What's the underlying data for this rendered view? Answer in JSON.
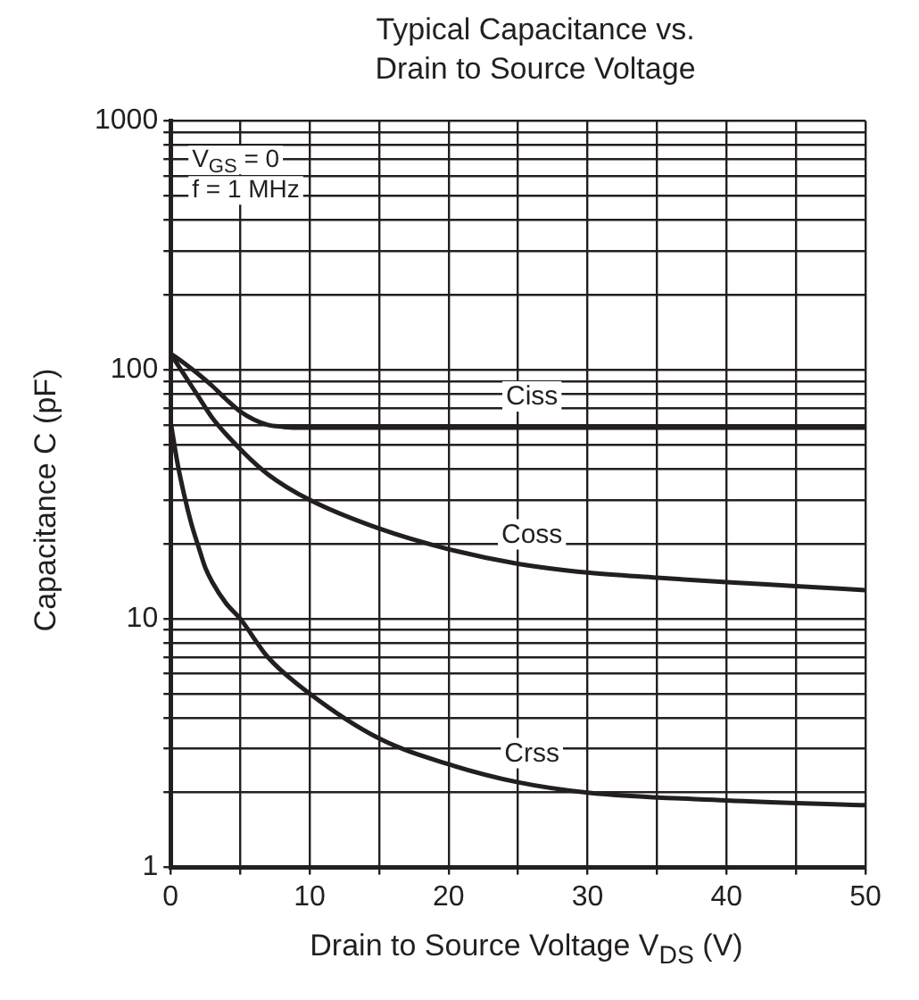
{
  "chart_data": {
    "type": "line",
    "title": "Typical Capacitance vs.\nDrain to Source Voltage",
    "xlabel": "Drain to Source Voltage  V$_{DS}$  (V)",
    "ylabel": "Capacitance  C (pF)",
    "annotations": [
      "V$_{GS}$ = 0",
      "f = 1 MHz"
    ],
    "log": "y",
    "grid": true,
    "legend": false,
    "marker": "none",
    "line_style": "solid",
    "xlim": [
      0,
      50
    ],
    "xticks": [
      0,
      {
        "value": 5,
        "label": null
      },
      10,
      {
        "value": 15,
        "label": null
      },
      20,
      {
        "value": 25,
        "label": null
      },
      30,
      {
        "value": 35,
        "label": null
      },
      40,
      {
        "value": 45,
        "label": null
      },
      50
    ],
    "ylim": [
      1,
      1000
    ],
    "yticks": [
      1,
      {
        "value": 2,
        "label": null
      },
      {
        "value": 3,
        "label": null
      },
      {
        "value": 4,
        "label": null
      },
      {
        "value": 5,
        "label": null
      },
      {
        "value": 6,
        "label": null
      },
      {
        "value": 7,
        "label": null
      },
      {
        "value": 8,
        "label": null
      },
      {
        "value": 9,
        "label": null
      },
      10,
      {
        "value": 20,
        "label": null
      },
      {
        "value": 30,
        "label": null
      },
      {
        "value": 40,
        "label": null
      },
      {
        "value": 50,
        "label": null
      },
      {
        "value": 60,
        "label": null
      },
      {
        "value": 70,
        "label": null
      },
      {
        "value": 80,
        "label": null
      },
      {
        "value": 90,
        "label": null
      },
      100,
      {
        "value": 200,
        "label": null
      },
      {
        "value": 300,
        "label": null
      },
      {
        "value": 400,
        "label": null
      },
      {
        "value": 500,
        "label": null
      },
      {
        "value": 600,
        "label": null
      },
      {
        "value": 700,
        "label": null
      },
      {
        "value": 800,
        "label": null
      },
      {
        "value": 900,
        "label": null
      },
      1000
    ],
    "series": [
      {
        "name": "Ciss",
        "color": "#231f20",
        "x": [
          0,
          1,
          2,
          3,
          4,
          5,
          6,
          7,
          8,
          9,
          15,
          20,
          30,
          40,
          50
        ],
        "values": [
          116,
          106,
          96,
          86,
          76,
          68,
          63,
          60,
          59,
          58.5,
          58.5,
          58.5,
          58.5,
          58.5,
          58.5
        ]
      },
      {
        "name": "Coss",
        "color": "#231f20",
        "x": [
          0,
          1,
          2,
          3,
          5,
          7,
          10,
          15,
          20,
          25,
          30,
          35,
          40,
          45,
          50
        ],
        "values": [
          116,
          95,
          78,
          64,
          48,
          38,
          30,
          23,
          19,
          16.6,
          15.3,
          14.6,
          14,
          13.5,
          13
        ]
      },
      {
        "name": "Crss",
        "color": "#231f20",
        "x": [
          0,
          0.5,
          1,
          1.5,
          2,
          2.5,
          3,
          4,
          5,
          7,
          10,
          15,
          20,
          25,
          30,
          40,
          50
        ],
        "values": [
          62,
          42,
          31,
          24,
          19.5,
          16,
          14,
          11.5,
          10,
          7,
          5,
          3.3,
          2.6,
          2.2,
          2,
          1.86,
          1.78
        ]
      }
    ]
  }
}
